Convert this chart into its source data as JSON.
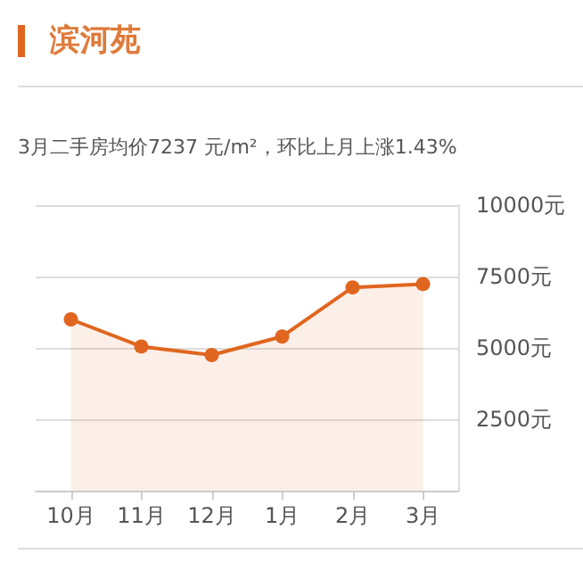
{
  "chart_data": {
    "type": "area",
    "title": "滨河苑",
    "subtitle": "3月二手房均价7237 元/m²，环比上月上涨1.43%",
    "categories": [
      "10月",
      "11月",
      "12月",
      "1月",
      "2月",
      "3月"
    ],
    "series": [
      {
        "color": "#e0661f",
        "values": [
          6000,
          5050,
          4750,
          5400,
          7120,
          7237
        ]
      }
    ],
    "ylim": [
      0,
      10000
    ],
    "yticks": [
      {
        "value": 0,
        "label": null
      },
      {
        "value": 2500,
        "label": "2500元"
      },
      {
        "value": 5000,
        "label": "5000元"
      },
      {
        "value": 7500,
        "label": "7500元"
      },
      {
        "value": 10000,
        "label": "10000元"
      }
    ],
    "grid": "y",
    "marker": "circle",
    "line_style": "solid"
  }
}
